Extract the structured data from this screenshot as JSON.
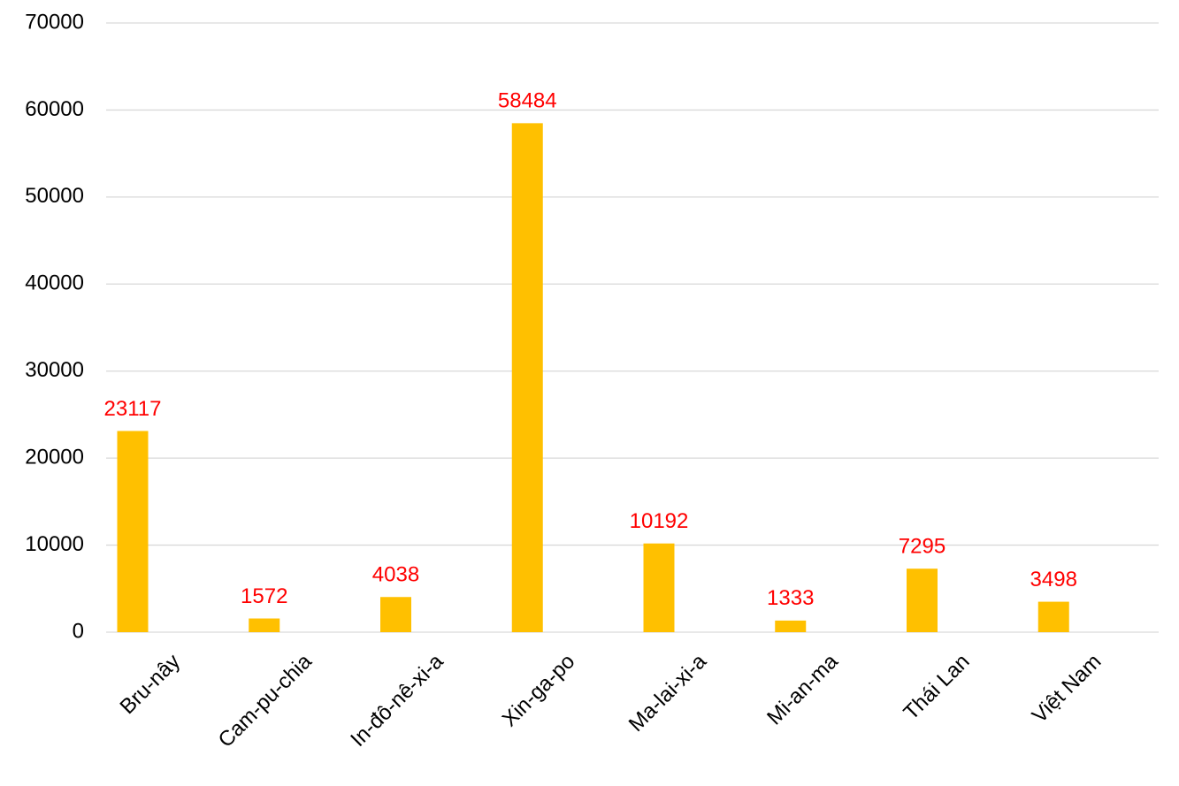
{
  "chart_data": {
    "type": "bar",
    "categories": [
      "Bru-nây",
      "Cam-pu-chia",
      "In-đô-nê-xi-a",
      "Xin-ga-po",
      "Ma-lai-xi-a",
      "Mi-an-ma",
      "Thái Lan",
      "Việt Nam"
    ],
    "values": [
      23117,
      1572,
      4038,
      58484,
      10192,
      1333,
      7295,
      3498
    ],
    "color": "#ffc000",
    "label_color": "#ff0000",
    "ylim": [
      0,
      70000
    ],
    "yticks": [
      0,
      10000,
      20000,
      30000,
      40000,
      50000,
      60000,
      70000
    ],
    "grid": true
  }
}
